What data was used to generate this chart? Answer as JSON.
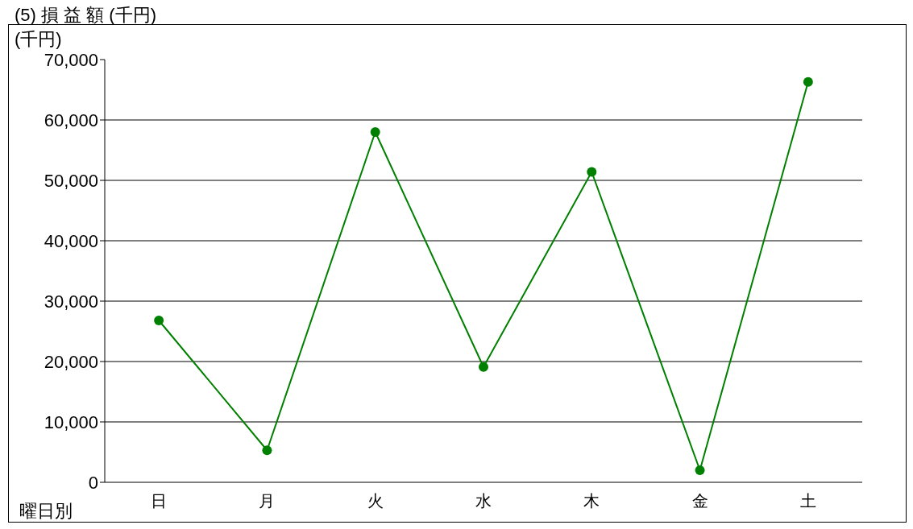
{
  "chart_data": {
    "type": "line",
    "title": "(5) 損 益 額 (千円)",
    "ylabel": "(千円)",
    "xlabel": "曜日別",
    "categories": [
      "日",
      "月",
      "火",
      "水",
      "木",
      "金",
      "土"
    ],
    "series": [
      {
        "color": "#008000",
        "values": [
          26800,
          5300,
          58000,
          19100,
          51400,
          2000,
          66300
        ]
      }
    ],
    "ylim": [
      0,
      70000
    ],
    "yticks": [
      0,
      {
        "value": 10000,
        "label": "10,000"
      },
      {
        "value": 20000,
        "label": "20,000"
      },
      {
        "value": 30000,
        "label": "30,000"
      },
      {
        "value": 40000,
        "label": "40,000"
      },
      {
        "value": 50000,
        "label": "50,000"
      },
      {
        "value": 60000,
        "label": "60,000"
      },
      {
        "value": 70000,
        "label": "70,000"
      }
    ],
    "grid": "y",
    "marker": "circle"
  }
}
